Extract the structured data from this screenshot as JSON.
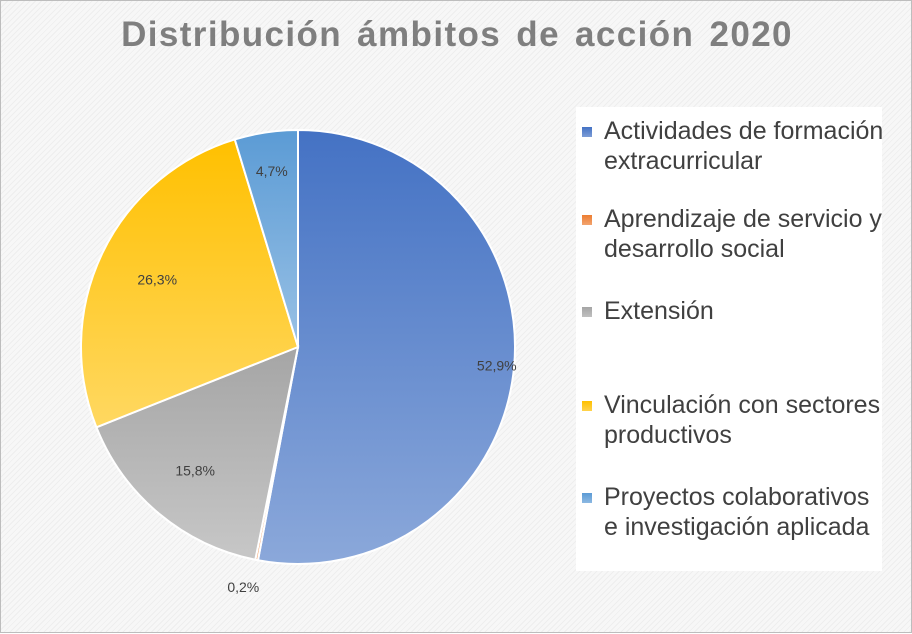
{
  "chart_data": {
    "type": "pie",
    "title": "Distribución ámbitos de acción 2020",
    "slices": [
      {
        "name": "Actividades de formación extracurricular",
        "value": 52.9,
        "label": "52,9%",
        "color": "#4472c4"
      },
      {
        "name": "Aprendizaje de servicio y desarrollo social",
        "value": 0.2,
        "label": "0,2%",
        "color": "#ed7d31"
      },
      {
        "name": "Extensión",
        "value": 15.8,
        "label": "15,8%",
        "color": "#a5a5a5"
      },
      {
        "name": "Vinculación con sectores productivos",
        "value": 26.3,
        "label": "26,3%",
        "color": "#ffc000"
      },
      {
        "name": "Proyectos colaborativos e investigación aplicada",
        "value": 4.7,
        "label": "4,7%",
        "color": "#5b9bd5"
      }
    ],
    "legend_position": "right"
  }
}
